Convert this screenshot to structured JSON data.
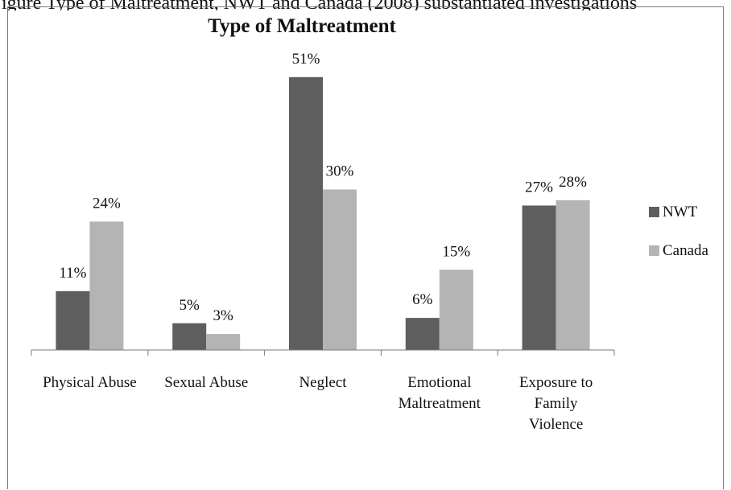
{
  "header_fragment": "igure Type of Maltreatment, NWT and Canada (2008) substantiated investigations",
  "chart_data": {
    "type": "bar",
    "title": "Type of Maltreatment",
    "categories": [
      [
        "Physical Abuse"
      ],
      [
        "Sexual Abuse"
      ],
      [
        "Neglect"
      ],
      [
        "Emotional",
        "Maltreatment"
      ],
      [
        "Exposure to",
        "Family",
        "Violence"
      ]
    ],
    "series": [
      {
        "name": "NWT",
        "color": "#5e5e5e",
        "values": [
          11,
          5,
          51,
          6,
          27
        ],
        "labels": [
          "11%",
          "5%",
          "51%",
          "6%",
          "27%"
        ]
      },
      {
        "name": "Canada",
        "color": "#b4b4b4",
        "values": [
          24,
          3,
          30,
          15,
          28
        ],
        "labels": [
          "24%",
          "3%",
          "30%",
          "15%",
          "28%"
        ]
      }
    ],
    "ylim": [
      0,
      55
    ],
    "grid": false,
    "legend": "right"
  }
}
